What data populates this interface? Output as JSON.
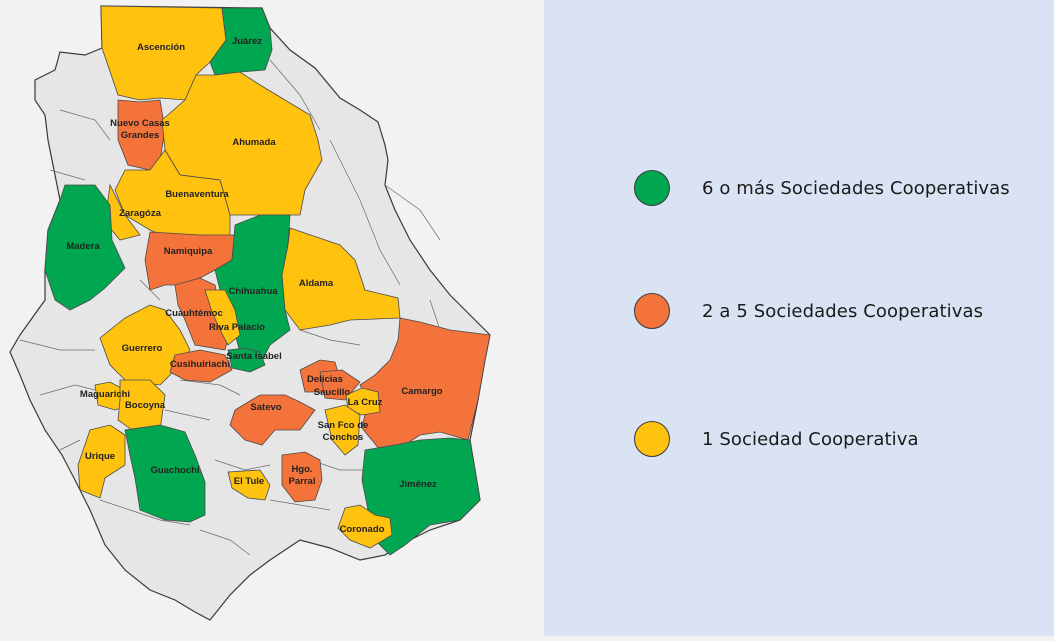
{
  "colors": {
    "green": "#00a650",
    "orange": "#f4733a",
    "yellow": "#ffc20e",
    "grey": "#e6e6e6",
    "legend_panel": "#dae3f3"
  },
  "legend": [
    {
      "label": "6 o más Sociedades Cooperativas",
      "color_key": "green"
    },
    {
      "label": "2 a 5 Sociedades Cooperativas",
      "color_key": "orange"
    },
    {
      "label": "1 Sociedad Cooperativa",
      "color_key": "yellow"
    }
  ],
  "municipalities": [
    {
      "id": "ascencion",
      "name": "Ascención",
      "category": "yellow"
    },
    {
      "id": "juarez",
      "name": "Juárez",
      "category": "green"
    },
    {
      "id": "nuevo-casas-grandes",
      "name": "Nuevo Casas Grandes",
      "lines": [
        "Nuevo Casas",
        "Grandes"
      ],
      "category": "orange"
    },
    {
      "id": "ahumada",
      "name": "Ahumada",
      "category": "yellow"
    },
    {
      "id": "buenaventura",
      "name": "Buenaventura",
      "category": "yellow"
    },
    {
      "id": "zaragoza",
      "name": "Zaragóza",
      "category": "yellow"
    },
    {
      "id": "madera",
      "name": "Madera",
      "category": "green"
    },
    {
      "id": "namiquipa",
      "name": "Namiquipa",
      "category": "orange"
    },
    {
      "id": "chihuahua",
      "name": "Chihuahua",
      "category": "green"
    },
    {
      "id": "aldama",
      "name": "Aldama",
      "category": "yellow"
    },
    {
      "id": "cuauhtemoc",
      "name": "Cuauhtémoc",
      "category": "orange"
    },
    {
      "id": "riva-palacio",
      "name": "Riva Palacio",
      "category": "yellow"
    },
    {
      "id": "guerrero",
      "name": "Guerrero",
      "category": "yellow"
    },
    {
      "id": "santa-isabel",
      "name": "Santa Isabel",
      "category": "green"
    },
    {
      "id": "cusihuiriachi",
      "name": "Cusihuiriachi",
      "category": "orange"
    },
    {
      "id": "delicias",
      "name": "Delicias",
      "category": "orange"
    },
    {
      "id": "saucillo",
      "name": "Saucillo",
      "category": "orange"
    },
    {
      "id": "camargo",
      "name": "Camargo",
      "category": "orange"
    },
    {
      "id": "la-cruz",
      "name": "La Cruz",
      "category": "yellow"
    },
    {
      "id": "maguarichi",
      "name": "Maguarichi",
      "category": "yellow"
    },
    {
      "id": "bocoyna",
      "name": "Bocoyna",
      "category": "yellow"
    },
    {
      "id": "satevo",
      "name": "Satevo",
      "category": "orange"
    },
    {
      "id": "san-fco-de-conchos",
      "name": "San Fco de Conchos",
      "lines": [
        "San Fco de",
        "Conchos"
      ],
      "category": "yellow"
    },
    {
      "id": "urique",
      "name": "Urique",
      "category": "yellow"
    },
    {
      "id": "guachochi",
      "name": "Guachochi",
      "category": "green"
    },
    {
      "id": "el-tule",
      "name": "El Tule",
      "category": "yellow"
    },
    {
      "id": "hgo-parral",
      "name": "Hgo. Parral",
      "lines": [
        "Hgo.",
        "Parral"
      ],
      "category": "orange"
    },
    {
      "id": "jimenez",
      "name": "Jiménez",
      "category": "green"
    },
    {
      "id": "coronado",
      "name": "Coronado",
      "category": "yellow"
    }
  ]
}
